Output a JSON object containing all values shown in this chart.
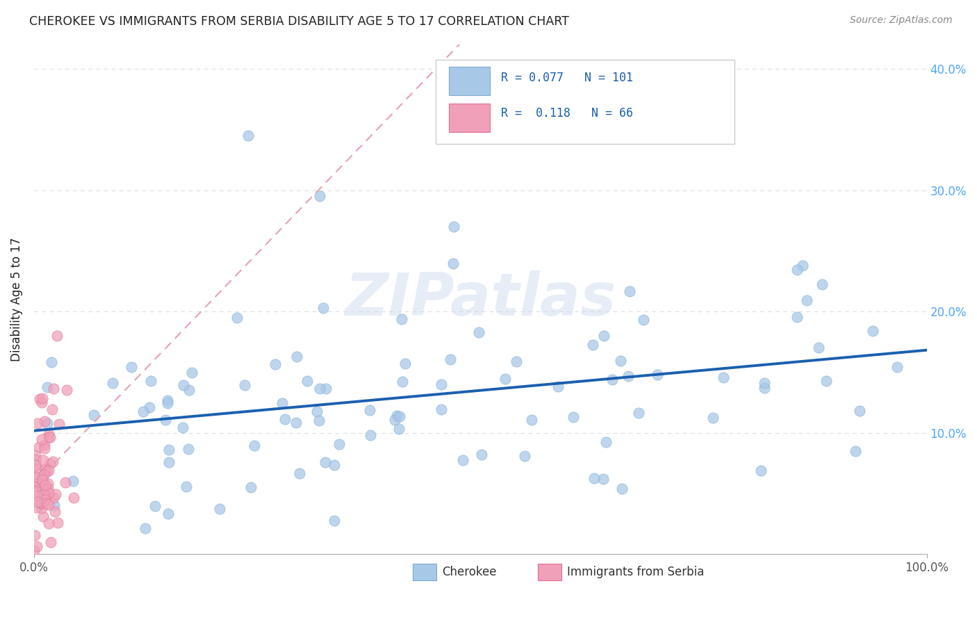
{
  "title": "CHEROKEE VS IMMIGRANTS FROM SERBIA DISABILITY AGE 5 TO 17 CORRELATION CHART",
  "source": "Source: ZipAtlas.com",
  "ylabel": "Disability Age 5 to 17",
  "xlim": [
    0,
    1.0
  ],
  "ylim": [
    0,
    0.42
  ],
  "cherokee_R": 0.077,
  "cherokee_N": 101,
  "serbia_R": 0.118,
  "serbia_N": 66,
  "cherokee_dot_color": "#a8c8e8",
  "cherokee_dot_edge": "#7aaad0",
  "serbia_dot_color": "#f0a0b8",
  "serbia_dot_edge": "#e07090",
  "cherokee_line_color": "#1a5faf",
  "serbia_line_color": "#e8a0b0",
  "legend_label_1": "Cherokee",
  "legend_label_2": "Immigrants from Serbia",
  "watermark": "ZIPatlas",
  "title_color": "#222222",
  "source_color": "#888888",
  "ylabel_color": "#222222",
  "tick_color": "#555555",
  "right_tick_color": "#4da6ff",
  "grid_color": "#dddddd",
  "background_color": "#ffffff",
  "y_tick_vals": [
    0.1,
    0.2,
    0.3,
    0.4
  ],
  "y_tick_labels": [
    "10.0%",
    "20.0%",
    "30.0%",
    "40.0%"
  ]
}
